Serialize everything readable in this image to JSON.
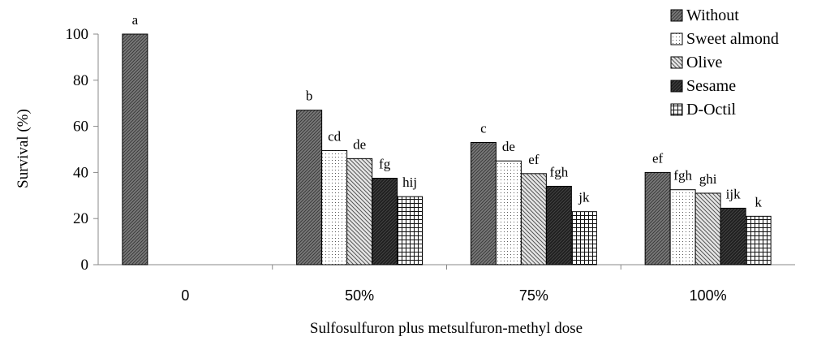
{
  "chart_data": {
    "type": "bar",
    "xlabel": "Sulfosulfuron plus metsulfuron-methyl dose",
    "ylabel": "Survival (%)",
    "ylim": [
      0,
      100
    ],
    "yticks": [
      "0",
      "20",
      "40",
      "60",
      "80",
      "100"
    ],
    "grid": false,
    "legend_position": "top-right",
    "categories": [
      "0",
      "50%",
      "75%",
      "100%"
    ],
    "series": [
      {
        "name": "Without",
        "pattern": "dark-gray-diagonal",
        "values": [
          100,
          67,
          53,
          40
        ],
        "labels": [
          "a",
          "b",
          "c",
          "ef"
        ]
      },
      {
        "name": "Sweet almond",
        "pattern": "white-dotted",
        "values": [
          null,
          49.5,
          45,
          32.5
        ],
        "labels": [
          "",
          "cd",
          "de",
          "fgh"
        ]
      },
      {
        "name": "Olive",
        "pattern": "light-diagonal-hatch",
        "values": [
          null,
          46,
          39.5,
          31
        ],
        "labels": [
          "",
          "de",
          "ef",
          "ghi"
        ]
      },
      {
        "name": "Sesame",
        "pattern": "black-dark",
        "values": [
          null,
          37.5,
          34,
          24.5
        ],
        "labels": [
          "",
          "fg",
          "fgh",
          "ijk"
        ]
      },
      {
        "name": "D-Octil",
        "pattern": "grid-cross-hatch",
        "values": [
          null,
          29.5,
          23,
          21
        ],
        "labels": [
          "",
          "hij",
          "jk",
          "k"
        ]
      }
    ]
  }
}
